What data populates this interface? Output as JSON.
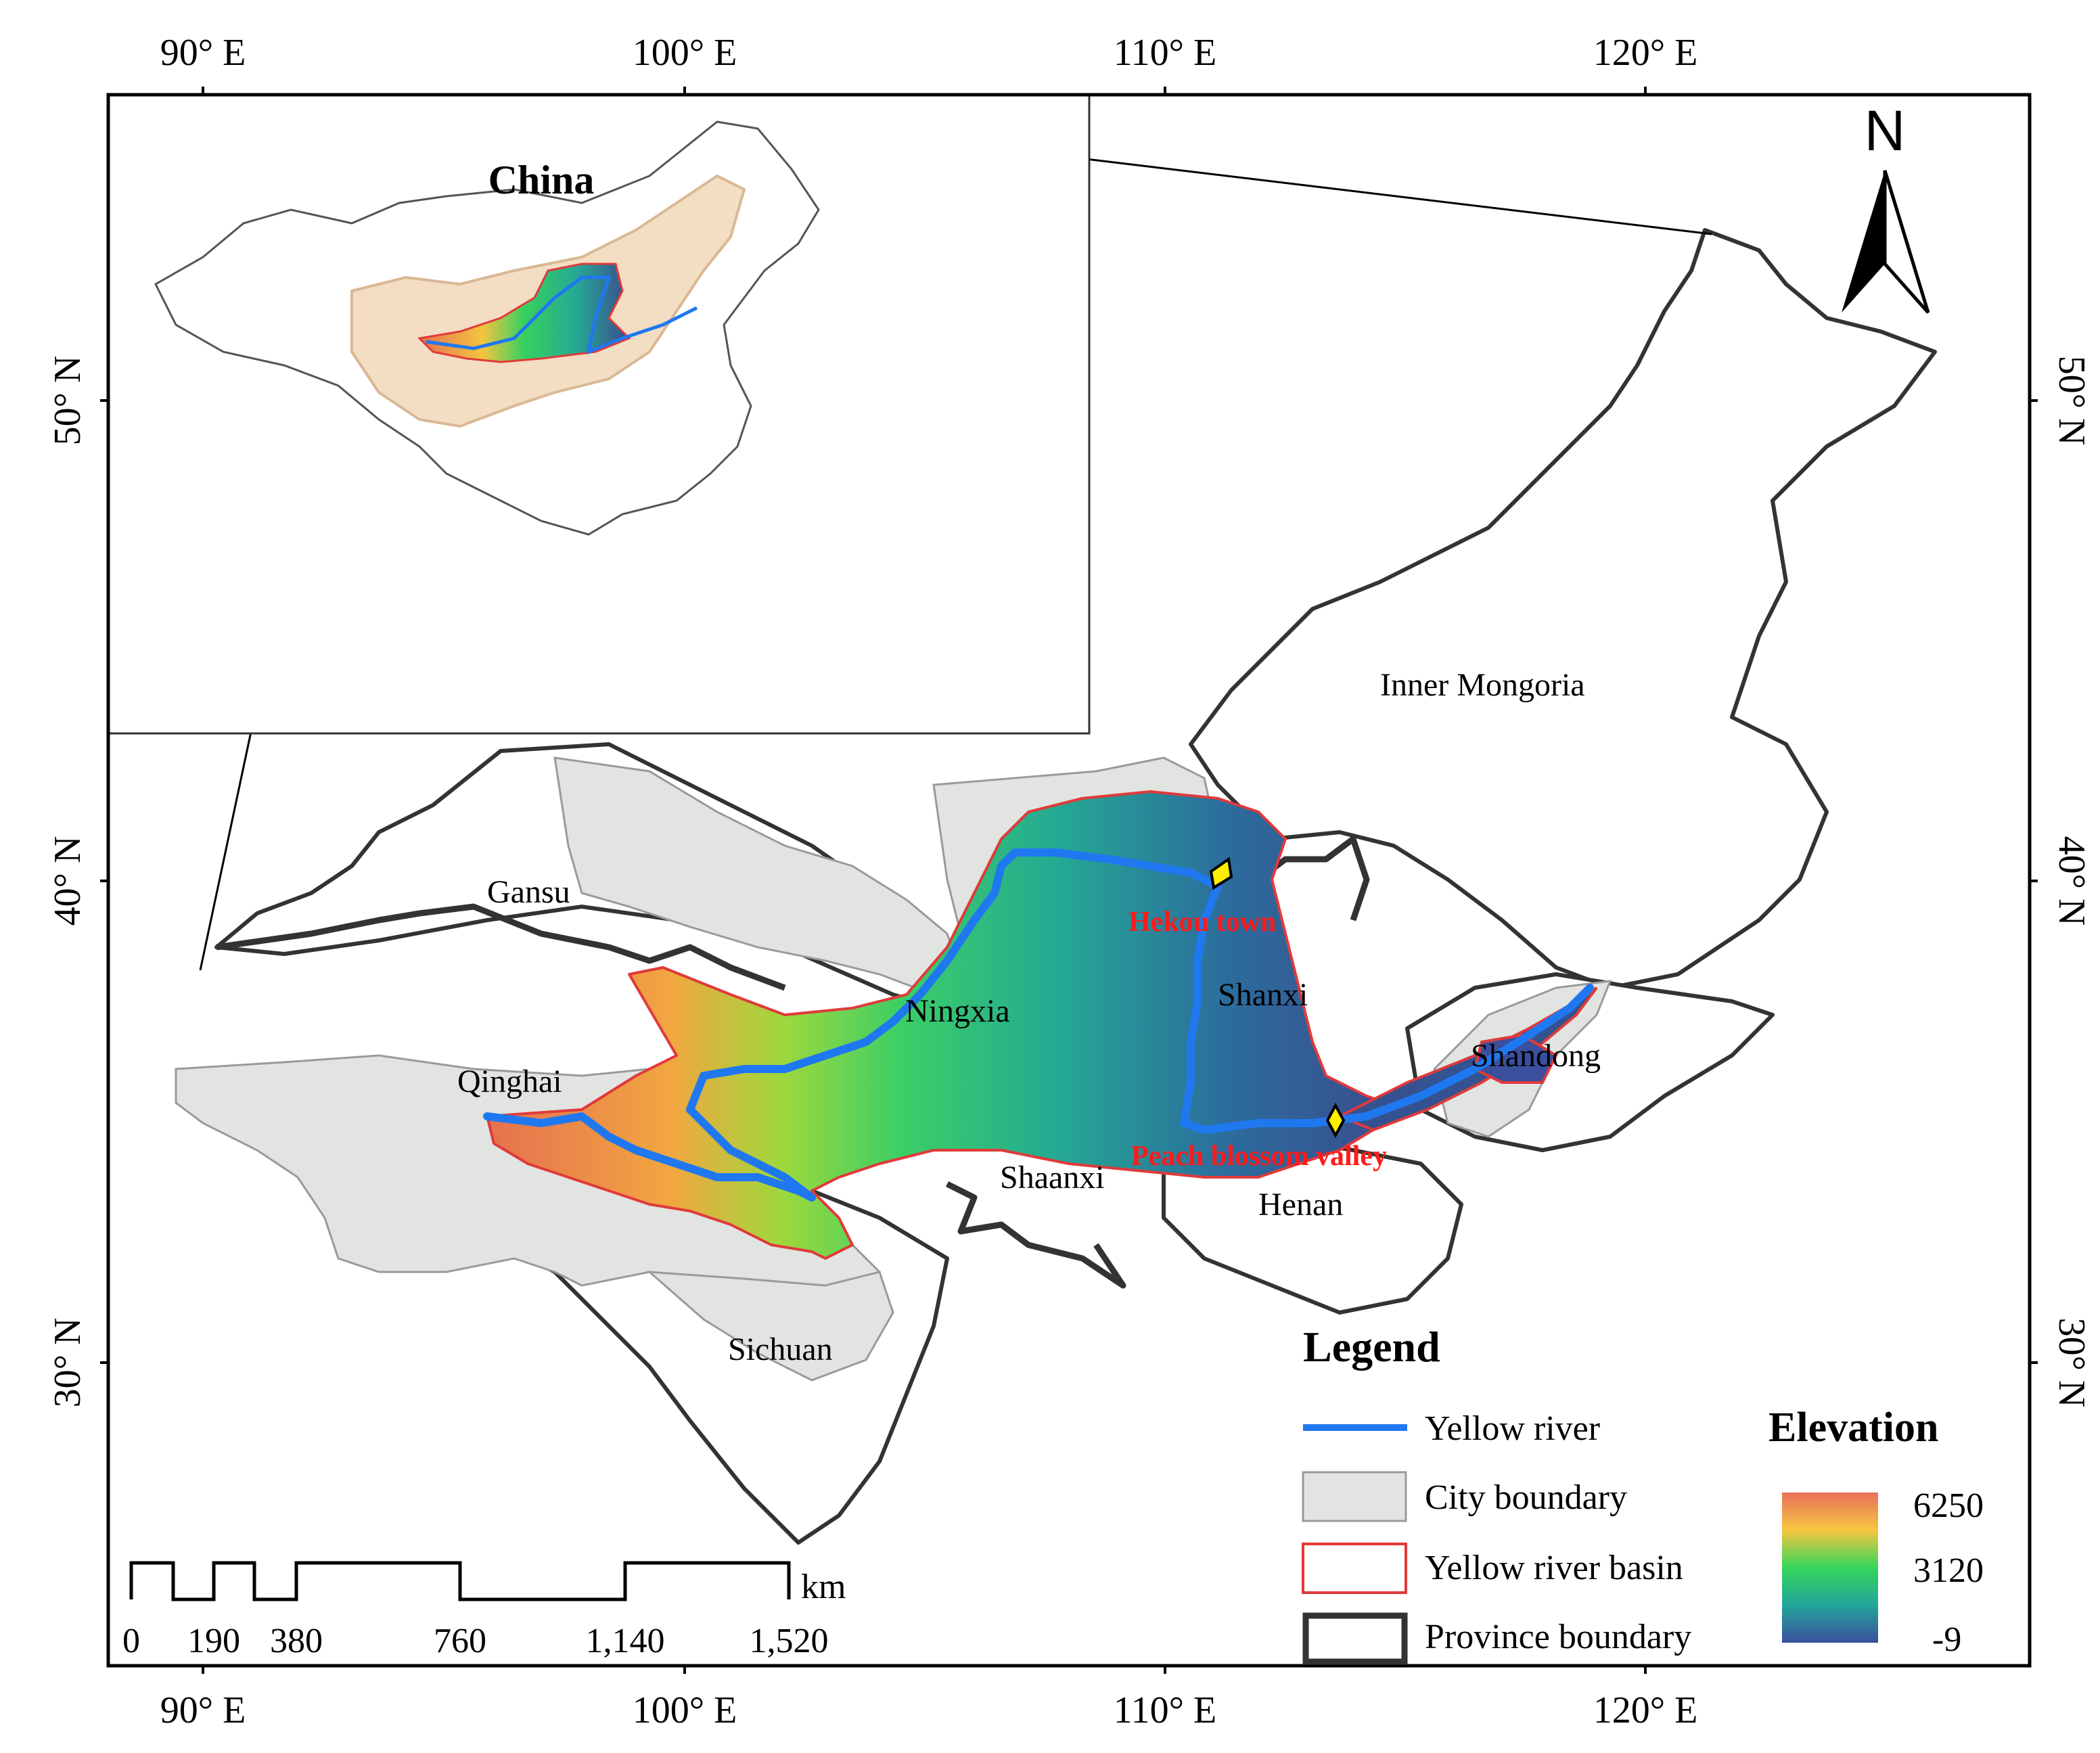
{
  "graticule": {
    "lon_labels": [
      "90° E",
      "100° E",
      "110° E",
      "120° E"
    ],
    "lat_labels": [
      "50° N",
      "40° N",
      "30° N"
    ]
  },
  "inset": {
    "title": "China"
  },
  "north_arrow": {
    "label": "N"
  },
  "place_labels": {
    "inner_mongolia": "Inner Mongoria",
    "gansu": "Gansu",
    "ningxia": "Ningxia",
    "shanxi": "Shanxi",
    "qinghai": "Qinghai",
    "shandong": "Shandong",
    "shaanxi": "Shaanxi",
    "henan": "Henan",
    "sichuan": "Sichuan"
  },
  "sites": {
    "hekou": "Hekou town",
    "peach": "Peach blossom valley"
  },
  "legend": {
    "title": "Legend",
    "items": {
      "river": "Yellow river",
      "city": "City boundary",
      "basin": "Yellow river basin",
      "province": "Province boundary"
    },
    "elevation": {
      "title": "Elevation",
      "max": "6250",
      "mid": "3120",
      "min": "-9"
    }
  },
  "scale_bar": {
    "unit": "km",
    "ticks": [
      "0",
      "190",
      "380",
      "760",
      "1,140",
      "1,520"
    ]
  },
  "colors": {
    "river": "#1f78f0",
    "city_fill": "#e2e4e2",
    "basin_edge": "#e03a3a",
    "province": "#333333",
    "site_label": "#ff1a1a",
    "site_marker": "#ffee00"
  }
}
